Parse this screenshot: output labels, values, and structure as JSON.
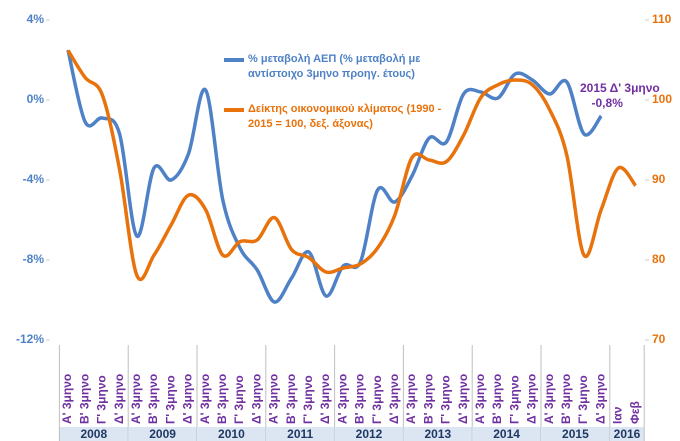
{
  "chart_data": {
    "type": "line",
    "groups": [
      {
        "year": "2008",
        "categories": [
          "Α' 3μηνο",
          "Β' 3μηνο",
          "Γ' 3μηνο",
          "Δ' 3μηνο"
        ]
      },
      {
        "year": "2009",
        "categories": [
          "Α' 3μηνο",
          "Β' 3μηνο",
          "Γ' 3μηνο",
          "Δ' 3μηνο"
        ]
      },
      {
        "year": "2010",
        "categories": [
          "Α' 3μηνο",
          "Β' 3μηνο",
          "Γ' 3μηνο",
          "Δ' 3μηνο"
        ]
      },
      {
        "year": "2011",
        "categories": [
          "Α' 3μηνο",
          "Β' 3μηνο",
          "Γ' 3μηνο",
          "Δ' 3μηνο"
        ]
      },
      {
        "year": "2012",
        "categories": [
          "Α' 3μηνο",
          "Β' 3μηνο",
          "Γ' 3μηνο",
          "Δ' 3μηνο"
        ]
      },
      {
        "year": "2013",
        "categories": [
          "Α' 3μηνο",
          "Β' 3μηνο",
          "Γ' 3μηνο",
          "Δ' 3μηνο"
        ]
      },
      {
        "year": "2014",
        "categories": [
          "Α' 3μηνο",
          "Β' 3μηνο",
          "Γ' 3μηνο",
          "Δ' 3μηνο"
        ]
      },
      {
        "year": "2015",
        "categories": [
          "Α' 3μηνο",
          "Β' 3μηνο",
          "Γ' 3μηνο",
          "Δ' 3μηνο"
        ]
      },
      {
        "year": "2016",
        "categories": [
          "Ιαν",
          "Φεβ"
        ]
      }
    ],
    "series": [
      {
        "name": "% μεταβολή ΑΕΠ (% μεταβολή με αντίστοιχο 3μηνο προηγ. έτους)",
        "color": "#4f81c7",
        "axis": "y",
        "values": [
          2.5,
          -1.1,
          -0.9,
          -1.7,
          -6.8,
          -3.4,
          -4.0,
          -2.7,
          0.5,
          -5.0,
          -7.4,
          -8.5,
          -10.1,
          -8.9,
          -7.6,
          -9.8,
          -8.3,
          -8.1,
          -4.5,
          -5.1,
          -3.8,
          -1.9,
          -2.1,
          0.3,
          0.4,
          0.1,
          1.3,
          1.0,
          0.3,
          0.9,
          -1.7,
          -0.8,
          null,
          null
        ],
        "value_labels": [
          null,
          null,
          null,
          null,
          null,
          null,
          null,
          null,
          null,
          null,
          null,
          null,
          null,
          null,
          null,
          null,
          null,
          null,
          null,
          null,
          null,
          null,
          null,
          null,
          null,
          null,
          null,
          null,
          null,
          null,
          null,
          "-0,8%",
          null,
          null
        ]
      },
      {
        "name": "Δείκτης οικονομικού κλίματος (1990 - 2015 = 100, δεξ. άξονας)",
        "color": "#e8720c",
        "axis": "y2",
        "values": [
          106.2,
          102.8,
          100.6,
          91.3,
          78.1,
          80.6,
          84.4,
          88.1,
          86.3,
          80.6,
          82.3,
          82.5,
          85.3,
          81.3,
          80.3,
          78.5,
          79.0,
          79.5,
          81.5,
          85.6,
          92.8,
          92.5,
          92.3,
          95.6,
          100.3,
          101.9,
          102.5,
          101.9,
          98.8,
          93.1,
          80.6,
          86.3,
          91.5,
          89.3
        ]
      }
    ],
    "annotation": "2015 Δ' 3μηνο",
    "ylim": [
      -12,
      4
    ],
    "yticks": [
      {
        "value": -12,
        "label": "-12%"
      },
      {
        "value": -8,
        "label": "-8%"
      },
      {
        "value": -4,
        "label": "-4%"
      },
      {
        "value": 0,
        "label": "0%"
      },
      {
        "value": 4,
        "label": "4%"
      }
    ],
    "y2lim": [
      70,
      110
    ],
    "y2ticks": [
      70,
      80,
      90,
      100,
      110
    ],
    "label_color": "#7030a0"
  }
}
